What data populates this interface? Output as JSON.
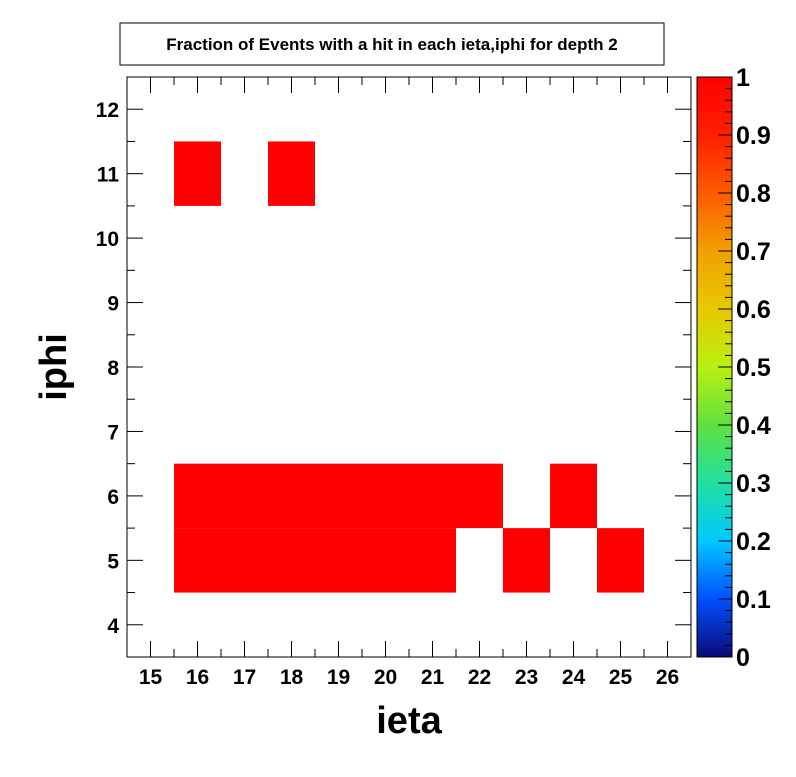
{
  "chart_data": {
    "type": "heatmap",
    "title": "Fraction of Events with a hit in each ieta,iphi for depth 2",
    "xlabel": "ieta",
    "ylabel": "iphi",
    "xlim": [
      14.5,
      26.5
    ],
    "ylim": [
      3.5,
      12.5
    ],
    "x_ticks": [
      "15",
      "16",
      "17",
      "18",
      "19",
      "20",
      "21",
      "22",
      "23",
      "24",
      "25",
      "26"
    ],
    "y_ticks": [
      "4",
      "5",
      "6",
      "7",
      "8",
      "9",
      "10",
      "11",
      "12"
    ],
    "z_range": [
      0,
      1
    ],
    "colorbar_ticks": [
      "0",
      "0.1",
      "0.2",
      "0.3",
      "0.4",
      "0.5",
      "0.6",
      "0.7",
      "0.8",
      "0.9",
      "1"
    ],
    "cells": [
      {
        "ieta": 16,
        "iphi": 11,
        "value": 1
      },
      {
        "ieta": 18,
        "iphi": 11,
        "value": 1
      },
      {
        "ieta": 16,
        "iphi": 6,
        "value": 1
      },
      {
        "ieta": 17,
        "iphi": 6,
        "value": 1
      },
      {
        "ieta": 18,
        "iphi": 6,
        "value": 1
      },
      {
        "ieta": 19,
        "iphi": 6,
        "value": 1
      },
      {
        "ieta": 20,
        "iphi": 6,
        "value": 1
      },
      {
        "ieta": 21,
        "iphi": 6,
        "value": 1
      },
      {
        "ieta": 22,
        "iphi": 6,
        "value": 1
      },
      {
        "ieta": 24,
        "iphi": 6,
        "value": 1
      },
      {
        "ieta": 16,
        "iphi": 5,
        "value": 1
      },
      {
        "ieta": 17,
        "iphi": 5,
        "value": 1
      },
      {
        "ieta": 18,
        "iphi": 5,
        "value": 1
      },
      {
        "ieta": 19,
        "iphi": 5,
        "value": 1
      },
      {
        "ieta": 20,
        "iphi": 5,
        "value": 1
      },
      {
        "ieta": 21,
        "iphi": 5,
        "value": 1
      },
      {
        "ieta": 23,
        "iphi": 5,
        "value": 1
      },
      {
        "ieta": 25,
        "iphi": 5,
        "value": 1
      }
    ],
    "colormap": [
      "#0a0a78",
      "#0050ff",
      "#00c8ff",
      "#20e0a0",
      "#60e040",
      "#b8f010",
      "#e8c800",
      "#f0a000",
      "#ff5a00",
      "#ff2000",
      "#ff0000"
    ],
    "cell_color": "#ff0000",
    "grid": false,
    "legend": "colorbar-right"
  }
}
